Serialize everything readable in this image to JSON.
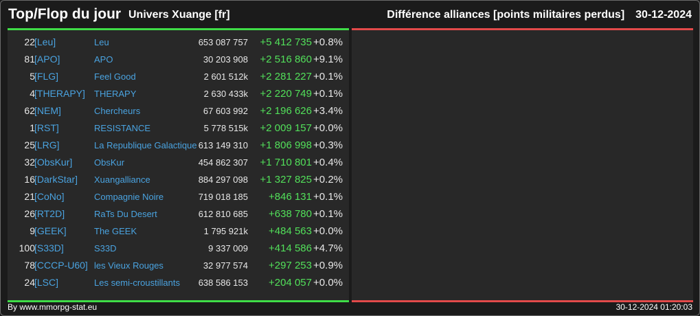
{
  "header": {
    "title": "Top/Flop du jour",
    "universe": "Univers Xuange [fr]",
    "category": "Différence alliances [points militaires perdus]",
    "date": "30-12-2024"
  },
  "colors": {
    "top_accent": "#3fdd47",
    "flop_accent": "#e24a4a",
    "link": "#4aa3e0",
    "positive": "#52e05a"
  },
  "top_rows": [
    {
      "rank": "22",
      "tag": "[Leu]",
      "name": "Leu",
      "points": "653 087 757",
      "diff": "+5 412 735",
      "pct": "+0.8%"
    },
    {
      "rank": "81",
      "tag": "[APO]",
      "name": "APO",
      "points": "30 203 908",
      "diff": "+2 516 860",
      "pct": "+9.1%"
    },
    {
      "rank": "5",
      "tag": "[FLG]",
      "name": "Feel Good",
      "points": "2 601 512k",
      "diff": "+2 281 227",
      "pct": "+0.1%"
    },
    {
      "rank": "4",
      "tag": "[THERAPY]",
      "name": "THERAPY",
      "points": "2 630 433k",
      "diff": "+2 220 749",
      "pct": "+0.1%"
    },
    {
      "rank": "62",
      "tag": "[NEM]",
      "name": "Chercheurs",
      "points": "67 603 992",
      "diff": "+2 196 626",
      "pct": "+3.4%"
    },
    {
      "rank": "1",
      "tag": "[RST]",
      "name": "RESISTANCE",
      "points": "5 778 515k",
      "diff": "+2 009 157",
      "pct": "+0.0%"
    },
    {
      "rank": "25",
      "tag": "[LRG]",
      "name": "La Republique Galactique",
      "points": "613 149 310",
      "diff": "+1 806 998",
      "pct": "+0.3%"
    },
    {
      "rank": "32",
      "tag": "[ObsKur]",
      "name": "ObsKur",
      "points": "454 862 307",
      "diff": "+1 710 801",
      "pct": "+0.4%"
    },
    {
      "rank": "16",
      "tag": "[DarkStar]",
      "name": "Xuangalliance",
      "points": "884 297 098",
      "diff": "+1 327 825",
      "pct": "+0.2%"
    },
    {
      "rank": "21",
      "tag": "[CoNo]",
      "name": "Compagnie Noire",
      "points": "719 018 185",
      "diff": "+846 131",
      "pct": "+0.1%"
    },
    {
      "rank": "26",
      "tag": "[RT2D]",
      "name": "RaTs Du Desert",
      "points": "612 810 685",
      "diff": "+638 780",
      "pct": "+0.1%"
    },
    {
      "rank": "9",
      "tag": "[GEEK]",
      "name": "The GEEK",
      "points": "1 795 921k",
      "diff": "+484 563",
      "pct": "+0.0%"
    },
    {
      "rank": "100",
      "tag": "[S33D]",
      "name": "S33D",
      "points": "9 337 009",
      "diff": "+414 586",
      "pct": "+4.7%"
    },
    {
      "rank": "78",
      "tag": "[CCCP-U60]",
      "name": "les Vieux Rouges",
      "points": "32 977 574",
      "diff": "+297 253",
      "pct": "+0.9%"
    },
    {
      "rank": "24",
      "tag": "[LSC]",
      "name": "Les semi-croustillants",
      "points": "638 586 153",
      "diff": "+204 057",
      "pct": "+0.0%"
    }
  ],
  "footer": {
    "credit": "By www.mmorpg-stat.eu",
    "timestamp": "30-12-2024 01:20:03"
  }
}
